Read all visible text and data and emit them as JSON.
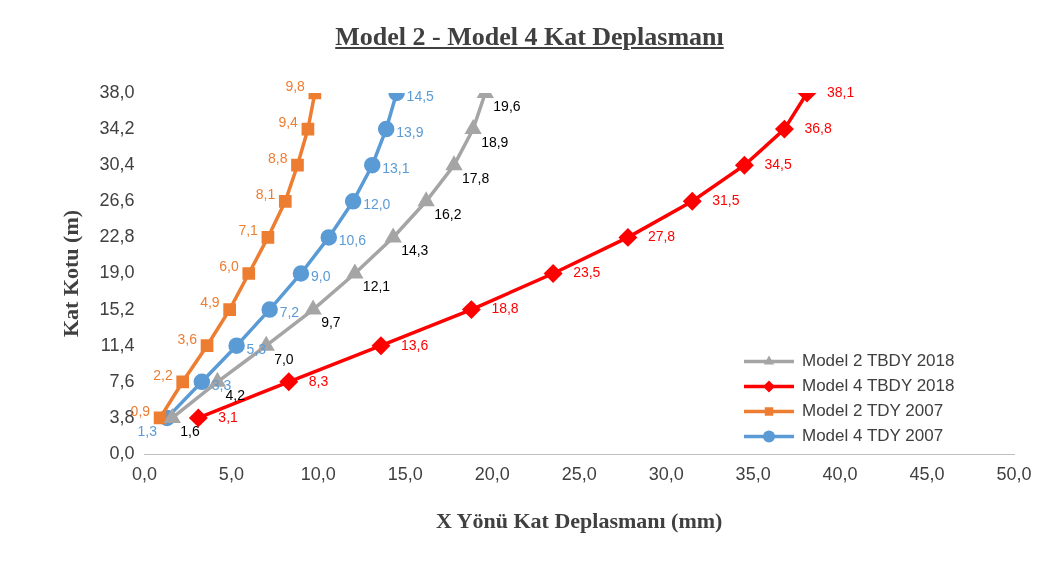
{
  "chart_data": {
    "type": "line",
    "orientation": "horizontal",
    "title": "Model 2 - Model 4 Kat Deplasmanı",
    "xlabel": "X Yönü Kat Deplasmanı (mm)",
    "ylabel": "Kat Kotu (m)",
    "xlim": [
      0,
      50
    ],
    "xticks": [
      {
        "value": 0,
        "label": "0,0"
      },
      {
        "value": 5,
        "label": "5,0"
      },
      {
        "value": 10,
        "label": "10,0"
      },
      {
        "value": 15,
        "label": "15,0"
      },
      {
        "value": 20,
        "label": "20,0"
      },
      {
        "value": 25,
        "label": "25,0"
      },
      {
        "value": 30,
        "label": "30,0"
      },
      {
        "value": 35,
        "label": "35,0"
      },
      {
        "value": 40,
        "label": "40,0"
      },
      {
        "value": 45,
        "label": "45,0"
      },
      {
        "value": 50,
        "label": "50,0"
      }
    ],
    "ylim": [
      0,
      38
    ],
    "yticks": [
      {
        "value": 0,
        "label": "0,0"
      },
      {
        "value": 3.8,
        "label": "3,8"
      },
      {
        "value": 7.6,
        "label": "7,6"
      },
      {
        "value": 11.4,
        "label": "11,4"
      },
      {
        "value": 15.2,
        "label": "15,2"
      },
      {
        "value": 19,
        "label": "19,0"
      },
      {
        "value": 22.8,
        "label": "22,8"
      },
      {
        "value": 26.6,
        "label": "26,6"
      },
      {
        "value": 30.4,
        "label": "30,4"
      },
      {
        "value": 34.2,
        "label": "34,2"
      },
      {
        "value": 38,
        "label": "38,0"
      }
    ],
    "legend": "bottom right",
    "series": [
      {
        "name": "Model 2 TBDY 2018",
        "color": "#a5a5a5",
        "marker": "triangle",
        "x": [
          3.8,
          7.6,
          11.4,
          15.2,
          19,
          22.8,
          26.6,
          30.4,
          34.2,
          38
        ],
        "values": [
          1.6,
          4.2,
          7.0,
          9.7,
          12.1,
          14.3,
          16.2,
          17.8,
          18.9,
          19.6
        ],
        "value_labels": [
          "1,6",
          "4,2",
          "7,0",
          "9,7",
          "12,1",
          "14,3",
          "16,2",
          "17,8",
          "18,9",
          "19,6"
        ]
      },
      {
        "name": "Model 4 TBDY 2018",
        "color": "#ff0000",
        "marker": "diamond",
        "x": [
          3.8,
          7.6,
          11.4,
          15.2,
          19,
          22.8,
          26.6,
          30.4,
          34.2,
          38
        ],
        "values": [
          3.1,
          8.3,
          13.6,
          18.8,
          23.5,
          27.8,
          31.5,
          34.5,
          36.8,
          38.1
        ],
        "value_labels": [
          "3,1",
          "8,3",
          "13,6",
          "18,8",
          "23,5",
          "27,8",
          "31,5",
          "34,5",
          "36,8",
          "38,1"
        ]
      },
      {
        "name": "Model 2 TDY 2007",
        "color": "#ed7d31",
        "marker": "square",
        "x": [
          3.8,
          7.6,
          11.4,
          15.2,
          19,
          22.8,
          26.6,
          30.4,
          34.2,
          38
        ],
        "values": [
          0.9,
          2.2,
          3.6,
          4.9,
          6.0,
          7.1,
          8.1,
          8.8,
          9.4,
          9.8
        ],
        "value_labels": [
          "0,9",
          "2,2",
          "3,6",
          "4,9",
          "6,0",
          "7,1",
          "8,1",
          "8,8",
          "9,4",
          "9,8"
        ]
      },
      {
        "name": "Model 4 TDY 2007",
        "color": "#5b9bd5",
        "marker": "circle",
        "x": [
          3.8,
          7.6,
          11.4,
          15.2,
          19,
          22.8,
          26.6,
          30.4,
          34.2,
          38
        ],
        "values": [
          1.3,
          3.3,
          5.3,
          7.2,
          9.0,
          10.6,
          12.0,
          13.1,
          13.9,
          14.5
        ],
        "value_labels": [
          "1,3",
          "3,3",
          "5,3",
          "7,2",
          "9,0",
          "10,6",
          "12,0",
          "13,1",
          "13,9",
          "14,5"
        ]
      }
    ]
  }
}
